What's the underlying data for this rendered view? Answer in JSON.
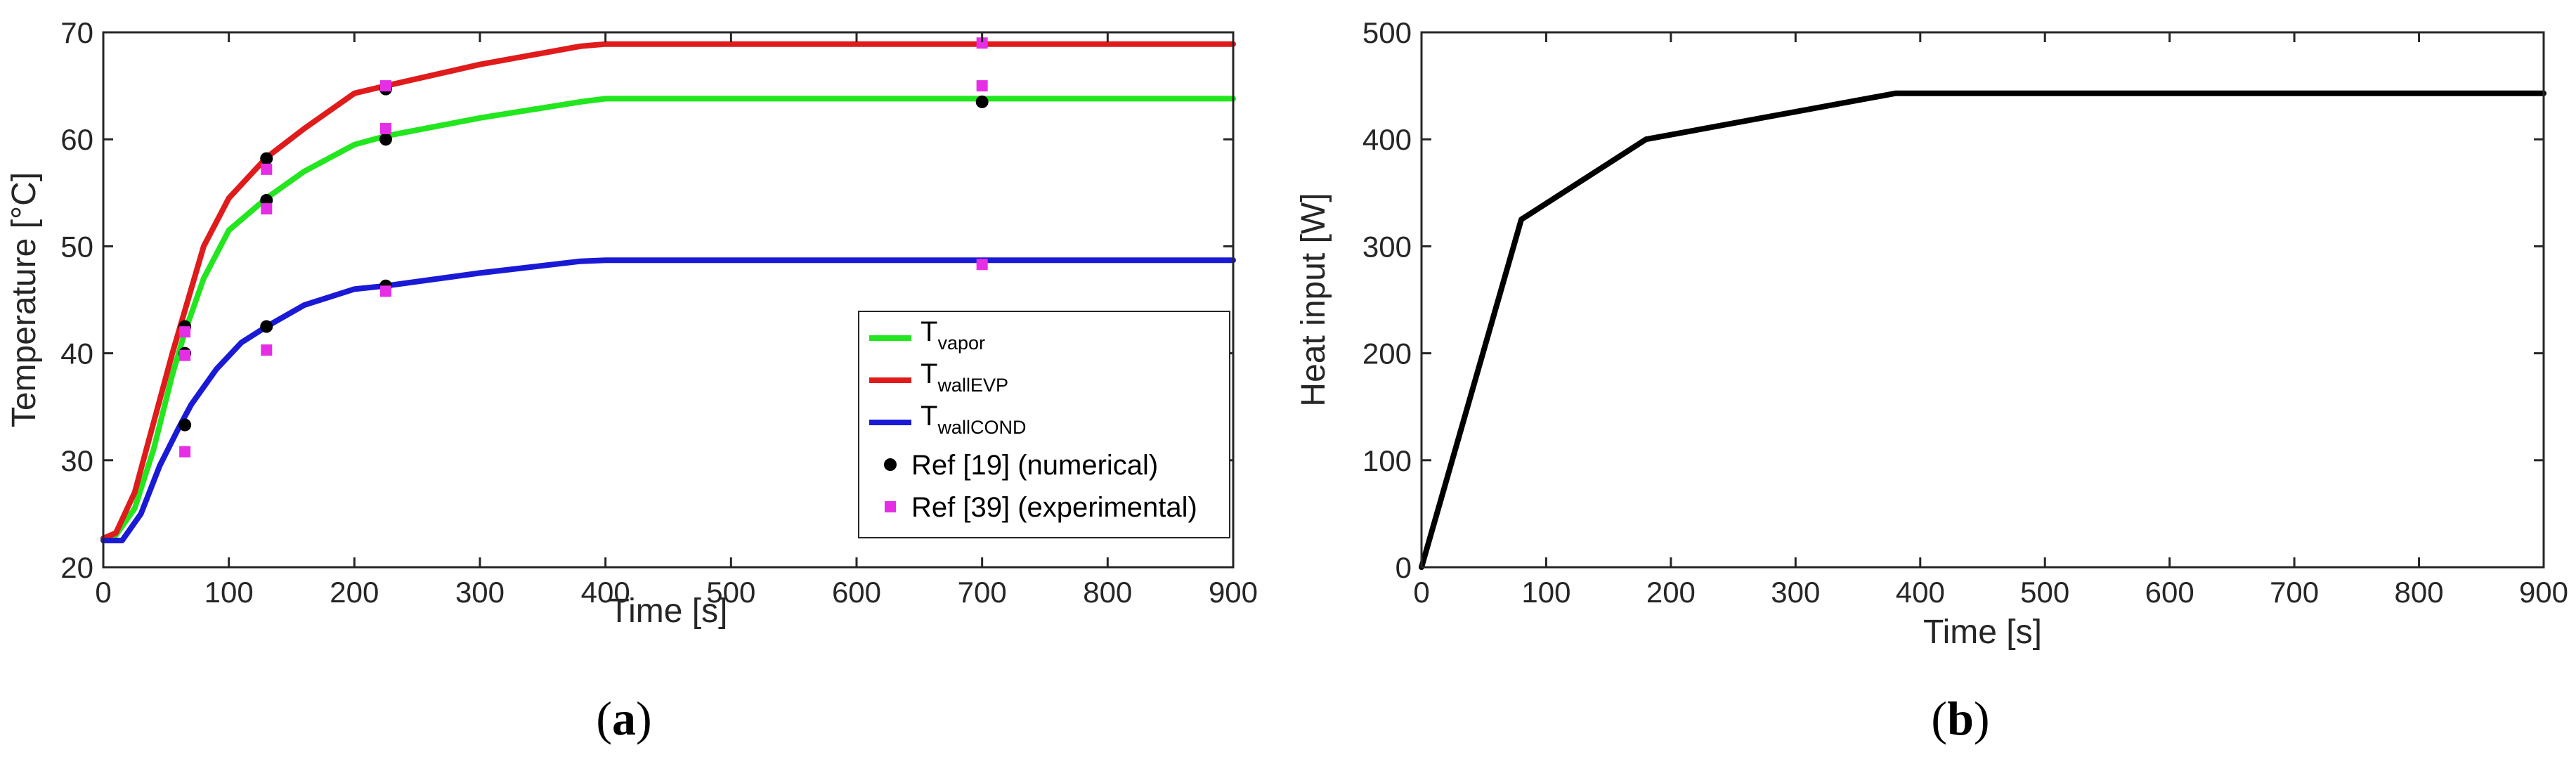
{
  "chart_data": [
    {
      "type": "line",
      "panel": "a",
      "caption_open": "(",
      "caption_letter": "a",
      "caption_close": ")",
      "xlabel": "Time [s]",
      "ylabel": "Temperature [°C]",
      "xlim": [
        0,
        900
      ],
      "ylim": [
        20,
        70
      ],
      "xticks": [
        0,
        100,
        200,
        300,
        400,
        500,
        600,
        700,
        800,
        900
      ],
      "yticks": [
        20,
        30,
        40,
        50,
        60,
        70
      ],
      "grid": false,
      "legend_position": "bottom-right",
      "series": [
        {
          "name": "T",
          "sub": "vapor",
          "color": "#22e61e",
          "kind": "line",
          "x": [
            0,
            10,
            25,
            40,
            55,
            65,
            80,
            100,
            130,
            160,
            200,
            225,
            300,
            380,
            400,
            420,
            500,
            600,
            700,
            800,
            900
          ],
          "y": [
            22.7,
            23.0,
            25.5,
            31,
            38,
            42,
            47,
            51.5,
            54.5,
            57,
            59.5,
            60.3,
            62,
            63.5,
            63.8,
            63.8,
            63.8,
            63.8,
            63.8,
            63.8,
            63.8
          ]
        },
        {
          "name": "T",
          "sub": "wallEVP",
          "color": "#e01b1b",
          "kind": "line",
          "x": [
            0,
            10,
            25,
            40,
            55,
            65,
            80,
            100,
            130,
            160,
            200,
            225,
            300,
            380,
            400,
            420,
            500,
            600,
            700,
            800,
            900
          ],
          "y": [
            22.7,
            23.2,
            27,
            33.5,
            40,
            44,
            50,
            54.5,
            58.3,
            61,
            64.3,
            65,
            67,
            68.7,
            68.9,
            68.9,
            68.9,
            68.9,
            68.9,
            68.9,
            68.9
          ]
        },
        {
          "name": "T",
          "sub": "wallCOND",
          "color": "#1a1ad6",
          "kind": "line",
          "x": [
            0,
            15,
            30,
            45,
            60,
            70,
            90,
            110,
            130,
            160,
            200,
            225,
            300,
            380,
            400,
            420,
            500,
            600,
            700,
            800,
            900
          ],
          "y": [
            22.5,
            22.5,
            25,
            29.5,
            33,
            35.2,
            38.5,
            41,
            42.5,
            44.5,
            46,
            46.3,
            47.5,
            48.6,
            48.7,
            48.7,
            48.7,
            48.7,
            48.7,
            48.7,
            48.7
          ]
        },
        {
          "name": "Ref [19] (numerical)",
          "color": "#000000",
          "kind": "marker",
          "marker": "circle",
          "x": [
            65,
            65,
            65,
            130,
            130,
            130,
            225,
            225,
            225,
            700
          ],
          "y": [
            42.5,
            40,
            33.3,
            58.2,
            54.3,
            42.5,
            64.7,
            60,
            46.3,
            63.5
          ]
        },
        {
          "name": "Ref [39] (experimental)",
          "color": "#e62ee6",
          "kind": "marker",
          "marker": "square",
          "x": [
            65,
            65,
            65,
            130,
            130,
            130,
            225,
            225,
            225,
            700,
            700,
            700
          ],
          "y": [
            42,
            39.8,
            30.8,
            57.2,
            53.5,
            40.3,
            65,
            61,
            45.8,
            69,
            65,
            48.3
          ]
        }
      ]
    },
    {
      "type": "line",
      "panel": "b",
      "caption_open": "(",
      "caption_letter": "b",
      "caption_close": ")",
      "xlabel": "Time [s]",
      "ylabel": "Heat input [W]",
      "xlim": [
        0,
        900
      ],
      "ylim": [
        0,
        500
      ],
      "xticks": [
        0,
        100,
        200,
        300,
        400,
        500,
        600,
        700,
        800,
        900
      ],
      "yticks": [
        0,
        100,
        200,
        300,
        400,
        500
      ],
      "grid": false,
      "series": [
        {
          "color": "#000000",
          "kind": "line",
          "x": [
            0,
            80,
            180,
            380,
            900
          ],
          "y": [
            0,
            325,
            400,
            443,
            443
          ]
        }
      ]
    }
  ]
}
